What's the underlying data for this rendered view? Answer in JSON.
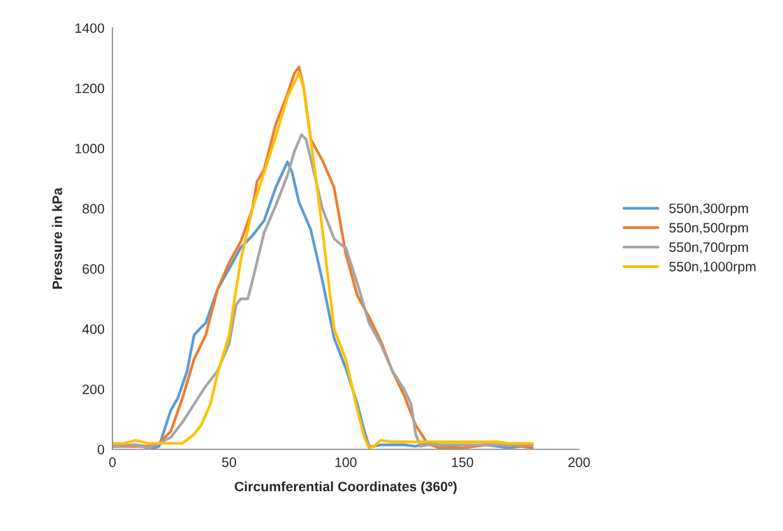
{
  "chart_data": {
    "type": "line",
    "xlabel": "Circumferential Coordinates (360º)",
    "ylabel": "Pressure in kPa",
    "xlim": [
      0,
      200
    ],
    "xticks": [
      0,
      50,
      100,
      150,
      200
    ],
    "ylim": [
      0,
      1400
    ],
    "yticks": [
      0,
      200,
      400,
      600,
      800,
      1000,
      1200,
      1400
    ],
    "grid": false,
    "legend": "right",
    "marker": "none",
    "line_style": "solid",
    "series": [
      {
        "name": "550n,300rpm",
        "color": "#5b9bd5",
        "x": [
          0,
          10,
          18,
          20,
          25,
          28,
          32,
          35,
          38,
          40,
          45,
          50,
          55,
          60,
          65,
          70,
          75,
          77,
          80,
          85,
          90,
          95,
          100,
          105,
          108,
          110,
          112,
          115,
          125,
          130,
          135,
          145,
          150,
          160,
          170,
          180
        ],
        "values": [
          10,
          15,
          5,
          10,
          130,
          170,
          260,
          380,
          405,
          420,
          530,
          600,
          670,
          710,
          760,
          870,
          955,
          920,
          820,
          730,
          560,
          370,
          270,
          150,
          60,
          10,
          10,
          15,
          15,
          10,
          20,
          10,
          5,
          15,
          5,
          15
        ]
      },
      {
        "name": "550n,500rpm",
        "color": "#ed7d31",
        "x": [
          0,
          15,
          20,
          25,
          30,
          35,
          40,
          45,
          50,
          55,
          60,
          62,
          65,
          70,
          75,
          78,
          80,
          82,
          85,
          90,
          95,
          100,
          105,
          110,
          115,
          120,
          125,
          130,
          135,
          140,
          150,
          160,
          170,
          180
        ],
        "values": [
          10,
          10,
          20,
          60,
          170,
          300,
          380,
          530,
          620,
          690,
          800,
          890,
          930,
          1080,
          1180,
          1250,
          1270,
          1200,
          1030,
          960,
          870,
          650,
          510,
          440,
          360,
          260,
          180,
          80,
          20,
          5,
          5,
          15,
          15,
          5
        ]
      },
      {
        "name": "550n,700rpm",
        "color": "#a5a5a5",
        "x": [
          0,
          10,
          15,
          20,
          25,
          30,
          35,
          40,
          45,
          50,
          53,
          55,
          58,
          60,
          65,
          70,
          75,
          78,
          81,
          83,
          87,
          90,
          95,
          98,
          100,
          105,
          110,
          115,
          120,
          125,
          128,
          130,
          132,
          135,
          150,
          170,
          180
        ],
        "values": [
          10,
          15,
          5,
          20,
          40,
          90,
          150,
          210,
          260,
          350,
          480,
          500,
          500,
          560,
          720,
          810,
          910,
          990,
          1045,
          1030,
          900,
          800,
          700,
          680,
          670,
          550,
          420,
          350,
          260,
          200,
          150,
          50,
          10,
          15,
          15,
          15,
          15
        ]
      },
      {
        "name": "550n,1000rpm",
        "color": "#ffc000",
        "x": [
          0,
          5,
          10,
          15,
          25,
          30,
          35,
          38,
          42,
          45,
          50,
          55,
          58,
          60,
          65,
          70,
          75,
          80,
          82,
          85,
          88,
          90,
          95,
          100,
          105,
          108,
          110,
          112,
          115,
          120,
          150,
          165,
          170,
          180
        ],
        "values": [
          20,
          20,
          30,
          20,
          20,
          20,
          50,
          80,
          150,
          250,
          380,
          630,
          730,
          800,
          920,
          1040,
          1170,
          1250,
          1200,
          1030,
          850,
          730,
          400,
          300,
          130,
          40,
          5,
          10,
          30,
          25,
          25,
          25,
          20,
          20
        ]
      }
    ]
  }
}
